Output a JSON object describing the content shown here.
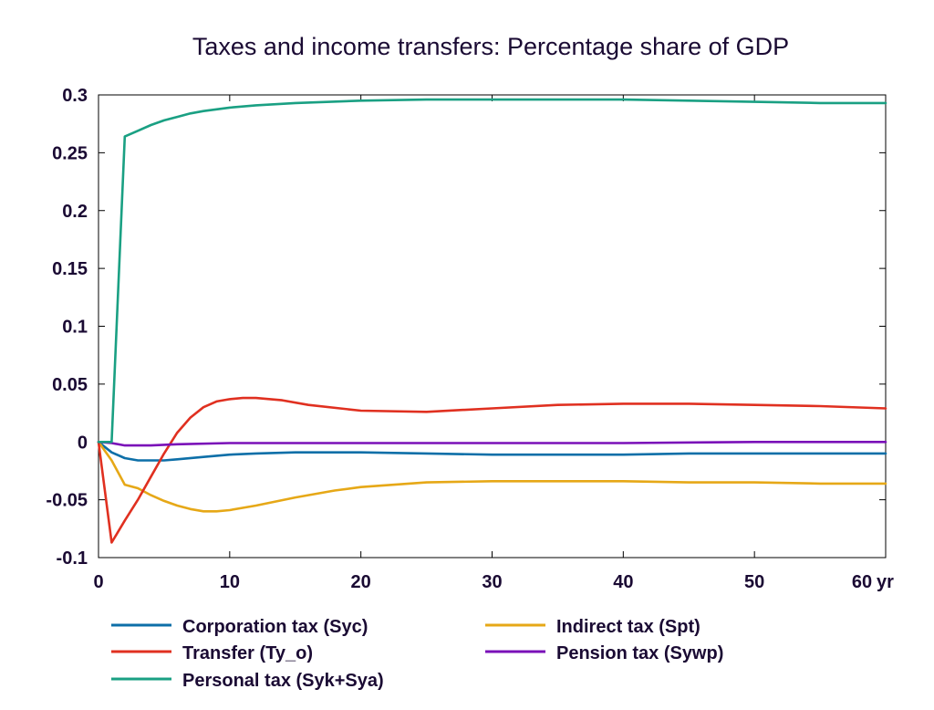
{
  "chart_data": {
    "type": "line",
    "title": "Taxes and income transfers: Percentage share of GDP",
    "xlabel": "",
    "ylabel": "",
    "x_unit_label": "yr",
    "xlim": [
      0,
      60
    ],
    "ylim": [
      -0.1,
      0.3
    ],
    "xticks": [
      0,
      10,
      20,
      30,
      40,
      50,
      60
    ],
    "yticks": [
      -0.1,
      -0.05,
      0,
      0.05,
      0.1,
      0.15,
      0.2,
      0.25,
      0.3
    ],
    "ytick_labels": [
      "-0.1",
      "-0.05",
      "0",
      "0.05",
      "0.1",
      "0.15",
      "0.2",
      "0.25",
      "0.3"
    ],
    "grid": false,
    "legend_position": "bottom",
    "series": [
      {
        "name": "Corporation tax (Syc)",
        "color": "#0d6fa8",
        "x": [
          0,
          1,
          2,
          3,
          4,
          5,
          6,
          8,
          10,
          12,
          15,
          20,
          25,
          30,
          35,
          40,
          45,
          50,
          55,
          60
        ],
        "y": [
          0,
          -0.009,
          -0.014,
          -0.016,
          -0.016,
          -0.016,
          -0.015,
          -0.013,
          -0.011,
          -0.01,
          -0.009,
          -0.009,
          -0.01,
          -0.011,
          -0.011,
          -0.011,
          -0.01,
          -0.01,
          -0.01,
          -0.01
        ]
      },
      {
        "name": "Indirect tax (Spt)",
        "color": "#e6a817",
        "x": [
          0,
          1,
          2,
          3,
          4,
          5,
          6,
          7,
          8,
          9,
          10,
          12,
          15,
          18,
          20,
          25,
          30,
          35,
          40,
          45,
          50,
          55,
          60
        ],
        "y": [
          0,
          -0.016,
          -0.037,
          -0.04,
          -0.046,
          -0.051,
          -0.055,
          -0.058,
          -0.06,
          -0.06,
          -0.059,
          -0.055,
          -0.048,
          -0.042,
          -0.039,
          -0.035,
          -0.034,
          -0.034,
          -0.034,
          -0.035,
          -0.035,
          -0.036,
          -0.036
        ]
      },
      {
        "name": "Transfer (Ty_o)",
        "color": "#e03020",
        "x": [
          0,
          1,
          2,
          3,
          4,
          5,
          6,
          7,
          8,
          9,
          10,
          11,
          12,
          14,
          16,
          20,
          25,
          30,
          35,
          40,
          45,
          50,
          55,
          60
        ],
        "y": [
          0,
          -0.087,
          -0.068,
          -0.05,
          -0.03,
          -0.01,
          0.008,
          0.021,
          0.03,
          0.035,
          0.037,
          0.038,
          0.038,
          0.036,
          0.032,
          0.027,
          0.026,
          0.029,
          0.032,
          0.033,
          0.033,
          0.032,
          0.031,
          0.029
        ]
      },
      {
        "name": "Pension tax (Sywp)",
        "color": "#7a10b8",
        "x": [
          0,
          1,
          2,
          4,
          6,
          10,
          20,
          30,
          40,
          50,
          60
        ],
        "y": [
          0,
          -0.001,
          -0.003,
          -0.003,
          -0.002,
          -0.001,
          -0.001,
          -0.001,
          -0.001,
          0.0,
          0.0
        ]
      },
      {
        "name": "Personal tax (Syk+Sya)",
        "color": "#1aa083",
        "x": [
          0,
          1,
          2,
          3,
          4,
          5,
          6,
          7,
          8,
          10,
          12,
          15,
          20,
          25,
          30,
          35,
          40,
          45,
          50,
          55,
          60
        ],
        "y": [
          0,
          0,
          0.264,
          0.269,
          0.274,
          0.278,
          0.281,
          0.284,
          0.286,
          0.289,
          0.291,
          0.293,
          0.295,
          0.296,
          0.296,
          0.296,
          0.296,
          0.295,
          0.294,
          0.293,
          0.293
        ]
      }
    ],
    "legend_order": [
      0,
      1,
      2,
      3,
      4
    ]
  }
}
